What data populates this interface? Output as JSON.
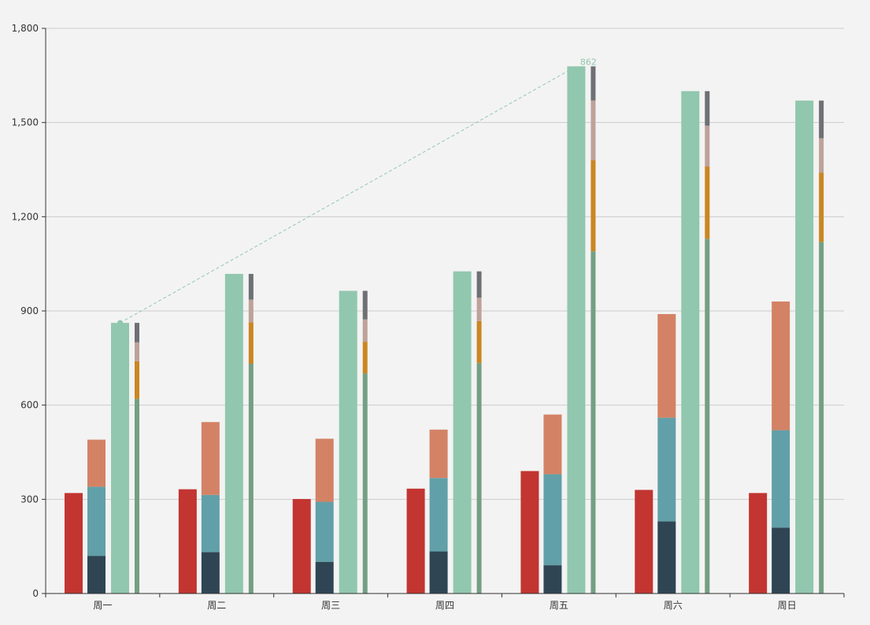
{
  "chart_data": {
    "type": "bar",
    "categories": [
      "周一",
      "周二",
      "周三",
      "周四",
      "周五",
      "周六",
      "周日"
    ],
    "y_ticks": [
      "0",
      "300",
      "600",
      "900",
      "1,200",
      "1,500",
      "1,800"
    ],
    "ylim": [
      0,
      1800
    ],
    "grid": true,
    "series": [
      {
        "stack": "A",
        "color": "#c23531",
        "values": [
          320,
          332,
          301,
          334,
          390,
          330,
          320
        ]
      },
      {
        "stack": "B",
        "color": "#2f4554",
        "values": [
          120,
          132,
          101,
          134,
          90,
          230,
          210
        ]
      },
      {
        "stack": "B",
        "color": "#61a0a8",
        "values": [
          220,
          182,
          191,
          234,
          290,
          330,
          310
        ]
      },
      {
        "stack": "B",
        "color": "#d48265",
        "values": [
          150,
          232,
          201,
          154,
          190,
          330,
          410
        ]
      },
      {
        "stack": "C",
        "color": "#91c7ae",
        "values": [
          862,
          1018,
          964,
          1026,
          1679,
          1600,
          1570
        ]
      },
      {
        "stack": "D",
        "color": "#749f83",
        "values": [
          620,
          732,
          701,
          734,
          1090,
          1130,
          1120
        ]
      },
      {
        "stack": "D",
        "color": "#ca8622",
        "values": [
          120,
          132,
          101,
          134,
          290,
          230,
          220
        ]
      },
      {
        "stack": "D",
        "color": "#bda29a",
        "values": [
          60,
          72,
          71,
          74,
          190,
          130,
          110
        ]
      },
      {
        "stack": "D",
        "color": "#6e7074",
        "values": [
          62,
          82,
          91,
          84,
          109,
          110,
          120
        ]
      }
    ],
    "mark_line": {
      "color": "#91c7ae",
      "from": {
        "category": "周一",
        "value": 862
      },
      "to": {
        "category": "周五",
        "value": 1679
      },
      "label": "862"
    }
  }
}
